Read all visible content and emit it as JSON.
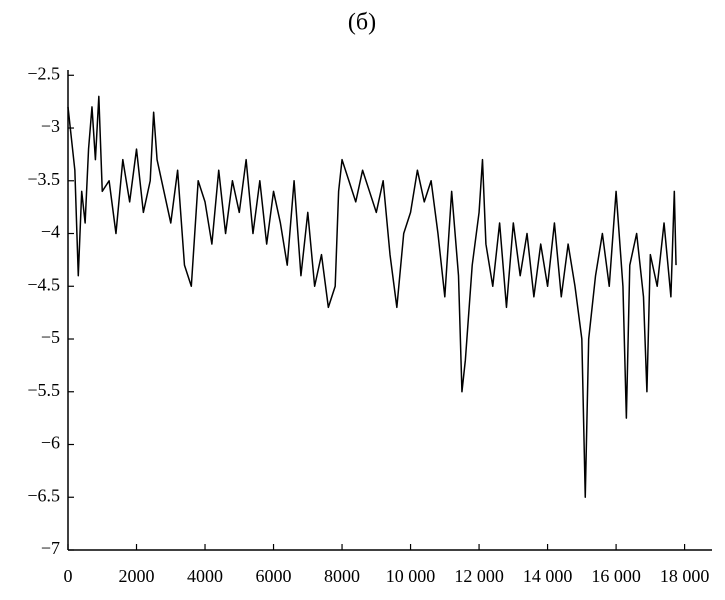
{
  "chart_data": {
    "type": "line",
    "title": "(б)",
    "x": [
      0,
      100,
      200,
      300,
      400,
      500,
      600,
      700,
      800,
      900,
      1000,
      1200,
      1400,
      1600,
      1800,
      2000,
      2200,
      2400,
      2500,
      2600,
      2800,
      3000,
      3200,
      3400,
      3600,
      3800,
      4000,
      4200,
      4400,
      4600,
      4800,
      5000,
      5200,
      5400,
      5600,
      5800,
      6000,
      6200,
      6400,
      6600,
      6800,
      7000,
      7200,
      7400,
      7600,
      7800,
      7900,
      8000,
      8200,
      8400,
      8600,
      8800,
      9000,
      9200,
      9400,
      9600,
      9800,
      10000,
      10200,
      10400,
      10600,
      10800,
      11000,
      11200,
      11400,
      11500,
      11600,
      11800,
      12000,
      12100,
      12200,
      12400,
      12600,
      12800,
      13000,
      13200,
      13400,
      13600,
      13800,
      14000,
      14200,
      14400,
      14600,
      14800,
      15000,
      15100,
      15200,
      15400,
      15600,
      15800,
      16000,
      16200,
      16300,
      16400,
      16600,
      16800,
      16900,
      17000,
      17200,
      17400,
      17600,
      17700,
      17750
    ],
    "series": [
      {
        "name": "series",
        "color": "#000000",
        "values": [
          -2.8,
          -3.1,
          -3.4,
          -4.4,
          -3.6,
          -3.9,
          -3.2,
          -2.8,
          -3.3,
          -2.7,
          -3.6,
          -3.5,
          -4.0,
          -3.3,
          -3.7,
          -3.2,
          -3.8,
          -3.5,
          -2.85,
          -3.3,
          -3.6,
          -3.9,
          -3.4,
          -4.3,
          -4.5,
          -3.5,
          -3.7,
          -4.1,
          -3.4,
          -4.0,
          -3.5,
          -3.8,
          -3.3,
          -4.0,
          -3.5,
          -4.1,
          -3.6,
          -3.9,
          -4.3,
          -3.5,
          -4.4,
          -3.8,
          -4.5,
          -4.2,
          -4.7,
          -4.5,
          -3.6,
          -3.3,
          -3.5,
          -3.7,
          -3.4,
          -3.6,
          -3.8,
          -3.5,
          -4.2,
          -4.7,
          -4.0,
          -3.8,
          -3.4,
          -3.7,
          -3.5,
          -4.0,
          -4.6,
          -3.6,
          -4.4,
          -5.5,
          -5.2,
          -4.3,
          -3.8,
          -3.3,
          -4.1,
          -4.5,
          -3.9,
          -4.7,
          -3.9,
          -4.4,
          -4.0,
          -4.6,
          -4.1,
          -4.5,
          -3.9,
          -4.6,
          -4.1,
          -4.5,
          -5.0,
          -6.5,
          -5.0,
          -4.4,
          -4.0,
          -4.5,
          -3.6,
          -4.5,
          -5.75,
          -4.3,
          -4.0,
          -4.6,
          -5.5,
          -4.2,
          -4.5,
          -3.9,
          -4.6,
          -3.6,
          -4.3
        ]
      }
    ],
    "xlim": [
      0,
      18800
    ],
    "xticks": [
      0,
      2000,
      4000,
      6000,
      8000,
      {
        "value": 10000,
        "label": "10 000"
      },
      {
        "value": 12000,
        "label": "12 000"
      },
      {
        "value": 14000,
        "label": "14 000"
      },
      {
        "value": 16000,
        "label": "16 000"
      },
      {
        "value": 18000,
        "label": "18 000"
      }
    ],
    "ylim": [
      -7,
      -2.45
    ],
    "yticks": [
      {
        "value": -2.5,
        "label": "−2.5"
      },
      {
        "value": -3,
        "label": "−3"
      },
      {
        "value": -3.5,
        "label": "−3.5"
      },
      {
        "value": -4,
        "label": "−4"
      },
      {
        "value": -4.5,
        "label": "−4.5"
      },
      {
        "value": -5,
        "label": "−5"
      },
      {
        "value": -5.5,
        "label": "−5.5"
      },
      {
        "value": -6,
        "label": "−6"
      },
      {
        "value": -6.5,
        "label": "−6.5"
      },
      {
        "value": -7,
        "label": "−7"
      }
    ],
    "grid": false
  }
}
